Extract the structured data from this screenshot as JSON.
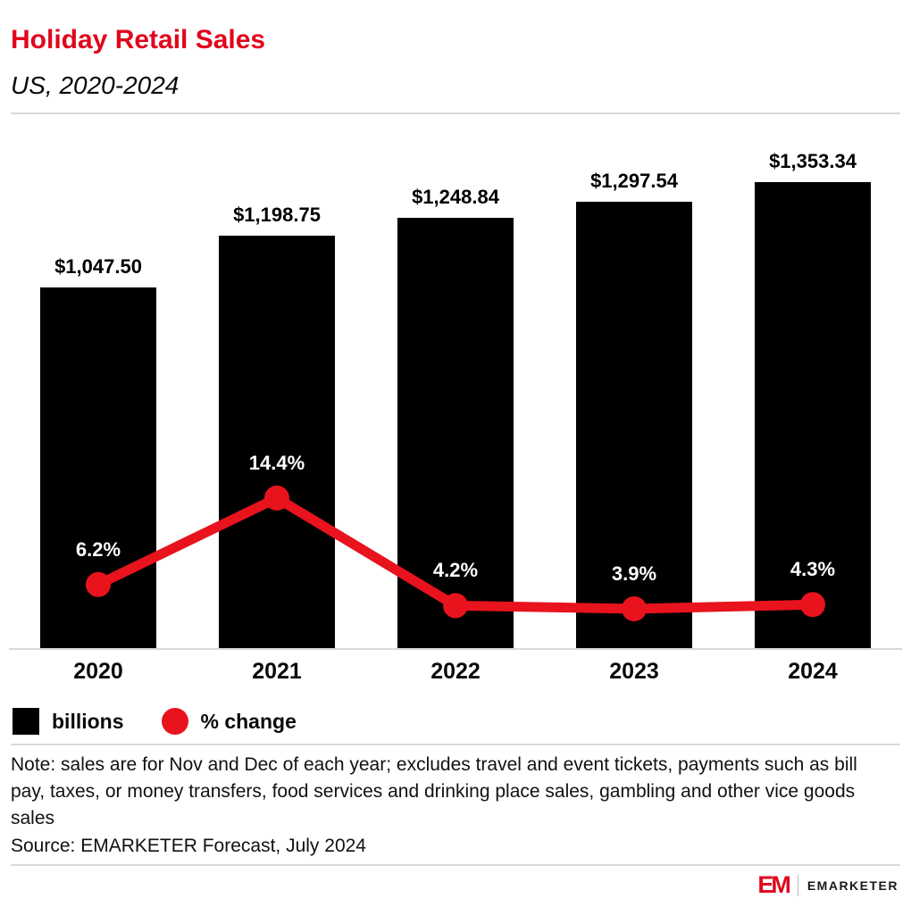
{
  "header": {
    "title": "Holiday Retail Sales",
    "subtitle": "US, 2020-2024"
  },
  "chart_data": {
    "type": "bar",
    "title": "Holiday Retail Sales",
    "subtitle": "US, 2020-2024",
    "categories": [
      "2020",
      "2021",
      "2022",
      "2023",
      "2024"
    ],
    "series": [
      {
        "name": "billions",
        "type": "bar",
        "values": [
          1047.5,
          1198.75,
          1248.84,
          1297.54,
          1353.34
        ],
        "labels": [
          "$1,047.50",
          "$1,198.75",
          "$1,248.84",
          "$1,297.54",
          "$1,353.34"
        ],
        "color": "#000000"
      },
      {
        "name": "% change",
        "type": "line",
        "values": [
          6.2,
          14.4,
          4.2,
          3.9,
          4.3
        ],
        "labels": [
          "6.2%",
          "14.4%",
          "4.2%",
          "3.9%",
          "4.3%"
        ],
        "color": "#e8131d"
      }
    ],
    "legend": [
      {
        "label": "billions",
        "swatch": "square",
        "color": "#000000"
      },
      {
        "label": "% change",
        "swatch": "circle",
        "color": "#e8131d"
      }
    ],
    "legend_position": "bottom-left",
    "grid": false,
    "xlabel": "",
    "ylabel": ""
  },
  "footer": {
    "note": "Note: sales are for Nov and Dec of each year; excludes travel and event tickets, payments such as bill pay, taxes, or money transfers, food services and drinking place sales, gambling and other vice goods sales",
    "source": "Source: EMARKETER Forecast, July 2024"
  },
  "branding": {
    "logo_text": "EM",
    "brand_name": "EMARKETER"
  }
}
